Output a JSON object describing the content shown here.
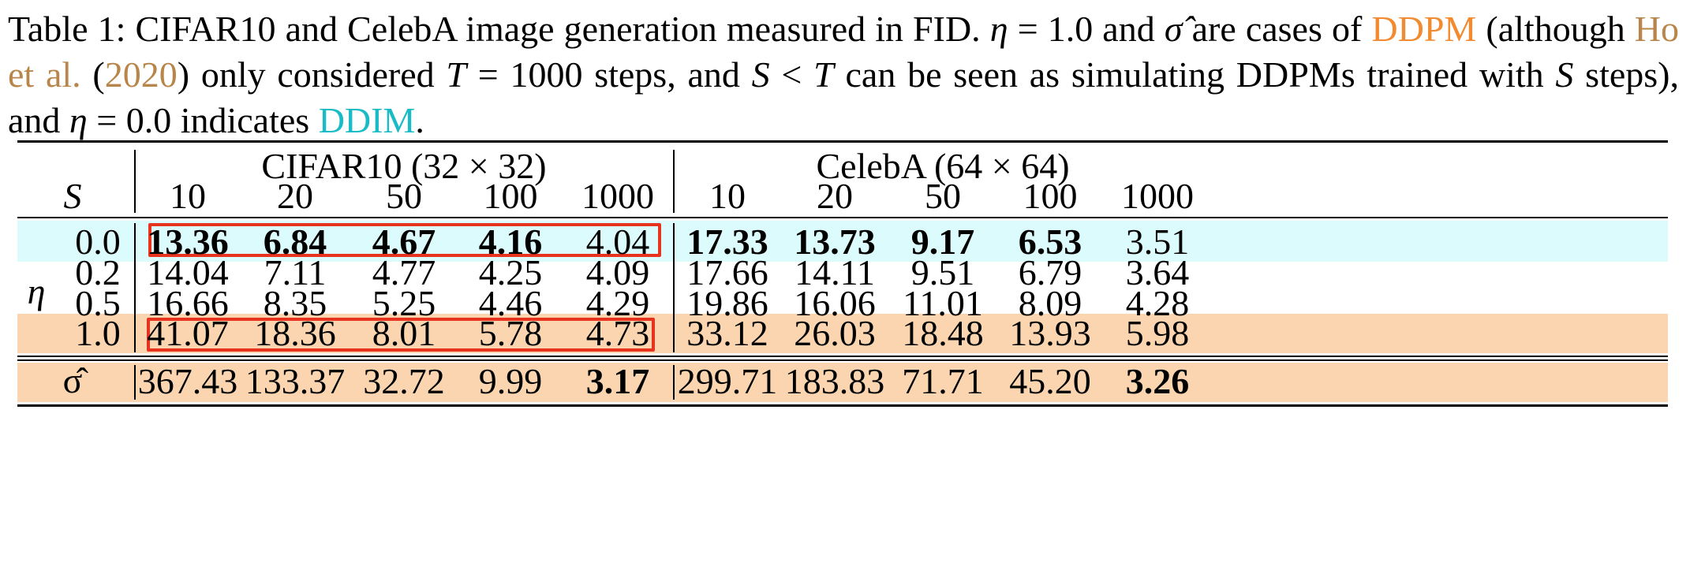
{
  "caption": {
    "p1": "Table 1:  CIFAR10 and CelebA image generation measured in FID. ",
    "eta_sym": "η",
    "p2": " = 1.0 and ",
    "sigma_sym": "σ̂",
    "p3": " are cases of ",
    "ddpm": "DDPM",
    "p4": " (although ",
    "cite_authors": "Ho et al.",
    "p5": " (",
    "cite_year": "2020",
    "p6": ") only considered ",
    "T1": "T",
    "p7": " = 1000 steps, and ",
    "S1": "S",
    "p8": " < ",
    "T2": "T",
    "p9": " can be seen as simulating DDPMs trained with ",
    "S2": "S",
    "p10": " steps), and ",
    "eta2": "η",
    "p11": " = 0.0 indicates ",
    "ddim": "DDIM",
    "p12": "."
  },
  "table": {
    "group_cifar": "CIFAR10 (32 × 32)",
    "group_celeba": "CelebA (64 × 64)",
    "s_label": "S",
    "eta_label": "η",
    "sigma_label": "σ̂",
    "steps": [
      "10",
      "20",
      "50",
      "100",
      "1000",
      "10",
      "20",
      "50",
      "100",
      "1000"
    ],
    "rows": [
      {
        "eta": "0.0",
        "values": [
          "13.36",
          "6.84",
          "4.67",
          "4.16",
          "4.04",
          "17.33",
          "13.73",
          "9.17",
          "6.53",
          "3.51"
        ]
      },
      {
        "eta": "0.2",
        "values": [
          "14.04",
          "7.11",
          "4.77",
          "4.25",
          "4.09",
          "17.66",
          "14.11",
          "9.51",
          "6.79",
          "3.64"
        ]
      },
      {
        "eta": "0.5",
        "values": [
          "16.66",
          "8.35",
          "5.25",
          "4.46",
          "4.29",
          "19.86",
          "16.06",
          "11.01",
          "8.09",
          "4.28"
        ]
      },
      {
        "eta": "1.0",
        "values": [
          "41.07",
          "18.36",
          "8.01",
          "5.78",
          "4.73",
          "33.12",
          "26.03",
          "18.48",
          "13.93",
          "5.98"
        ]
      }
    ],
    "sigma_row": [
      "367.43",
      "133.37",
      "32.72",
      "9.99",
      "3.17",
      "299.71",
      "183.83",
      "71.71",
      "45.20",
      "3.26"
    ],
    "highlight_colors": {
      "ddim_row": "#dcfbfc",
      "ddpm_rows": "#fbd5b0",
      "box": "#e8331f"
    }
  }
}
